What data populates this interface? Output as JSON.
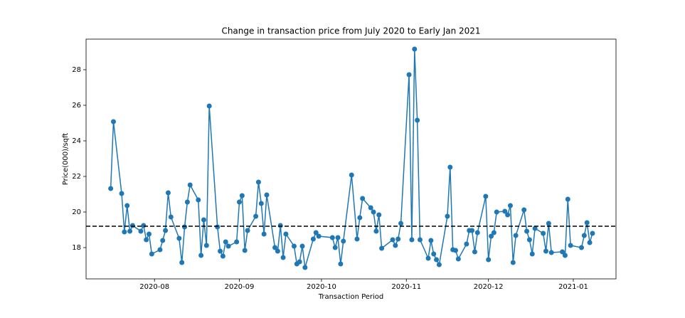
{
  "chart_data": {
    "type": "line",
    "title": "Change in transaction price from July 2020 to Early Jan 2021",
    "x_label": "Transaction Period",
    "y_label": "Price(000)/sqft",
    "x": [
      18459,
      18460,
      18463,
      18464,
      18465,
      18466,
      18467,
      18470,
      18471,
      18472,
      18473,
      18474,
      18477,
      18478,
      18479,
      18480,
      18481,
      18484,
      18485,
      18486,
      18487,
      18488,
      18491,
      18492,
      18493,
      18494,
      18495,
      18498,
      18499,
      18500,
      18501,
      18502,
      18505,
      18506,
      18507,
      18508,
      18509,
      18512,
      18513,
      18514,
      18515,
      18516,
      18519,
      18520,
      18521,
      18522,
      18523,
      18526,
      18527,
      18528,
      18529,
      18530,
      18533,
      18534,
      18535,
      18540,
      18541,
      18542,
      18543,
      18544,
      18547,
      18549,
      18550,
      18551,
      18554,
      18555,
      18556,
      18557,
      18558,
      18562,
      18563,
      18564,
      18565,
      18568,
      18569,
      18570,
      18571,
      18572,
      18575,
      18576,
      18577,
      18578,
      18579,
      18582,
      18583,
      18584,
      18585,
      18586,
      18589,
      18590,
      18591,
      18592,
      18593,
      18596,
      18597,
      18598,
      18599,
      18600,
      18603,
      18604,
      18605,
      18606,
      18607,
      18610,
      18611,
      18612,
      18613,
      18614,
      18617,
      18618,
      18619,
      18620,
      18624,
      18625,
      18626,
      18627,
      18631,
      18632,
      18633,
      18634,
      18635
    ],
    "series": [
      {
        "color": "#1f77b4",
        "values": [
          21.32,
          25.08,
          21.04,
          18.88,
          20.36,
          18.92,
          19.24,
          18.92,
          19.24,
          18.44,
          18.76,
          17.64,
          17.88,
          18.4,
          18.96,
          21.08,
          19.72,
          18.52,
          17.16,
          19.16,
          20.56,
          21.52,
          20.68,
          17.56,
          19.56,
          18.12,
          25.96,
          19.16,
          17.8,
          17.52,
          18.32,
          18.08,
          18.32,
          20.56,
          20.92,
          17.84,
          18.96,
          19.76,
          21.68,
          20.48,
          18.76,
          20.96,
          18.0,
          17.8,
          19.24,
          17.44,
          18.76,
          18.08,
          17.08,
          17.2,
          18.08,
          16.88,
          18.48,
          18.84,
          18.64,
          18.56,
          18.0,
          18.56,
          17.08,
          18.36,
          22.08,
          18.48,
          19.68,
          20.76,
          20.24,
          20.0,
          18.92,
          19.84,
          17.96,
          18.44,
          18.12,
          18.48,
          19.36,
          27.72,
          18.44,
          29.16,
          25.16,
          18.44,
          17.4,
          18.4,
          17.64,
          17.32,
          17.04,
          19.76,
          22.52,
          17.88,
          17.84,
          17.36,
          18.2,
          18.96,
          18.96,
          17.76,
          18.84,
          20.88,
          17.32,
          18.64,
          18.84,
          20.0,
          20.04,
          19.84,
          20.36,
          17.16,
          18.68,
          20.12,
          18.92,
          18.44,
          17.64,
          19.08,
          18.8,
          17.8,
          19.36,
          17.72,
          17.76,
          17.56,
          20.72,
          18.12,
          18.0,
          18.68,
          19.4,
          18.28,
          18.8
        ]
      }
    ],
    "reference_line": {
      "value": 19.2,
      "color": "#000000",
      "style": "dashed"
    },
    "xlim": [
      18450,
      18643.6
    ],
    "xticks": [
      {
        "value": 18475,
        "label": "2020-08"
      },
      {
        "value": 18506,
        "label": "2020-09"
      },
      {
        "value": 18536,
        "label": "2020-10"
      },
      {
        "value": 18567,
        "label": "2020-11"
      },
      {
        "value": 18597,
        "label": "2020-12"
      },
      {
        "value": 18628,
        "label": "2021-01"
      }
    ],
    "ylim": [
      16.24,
      29.72
    ],
    "yticks": [
      18,
      20,
      22,
      24,
      26,
      28
    ],
    "grid": false
  }
}
